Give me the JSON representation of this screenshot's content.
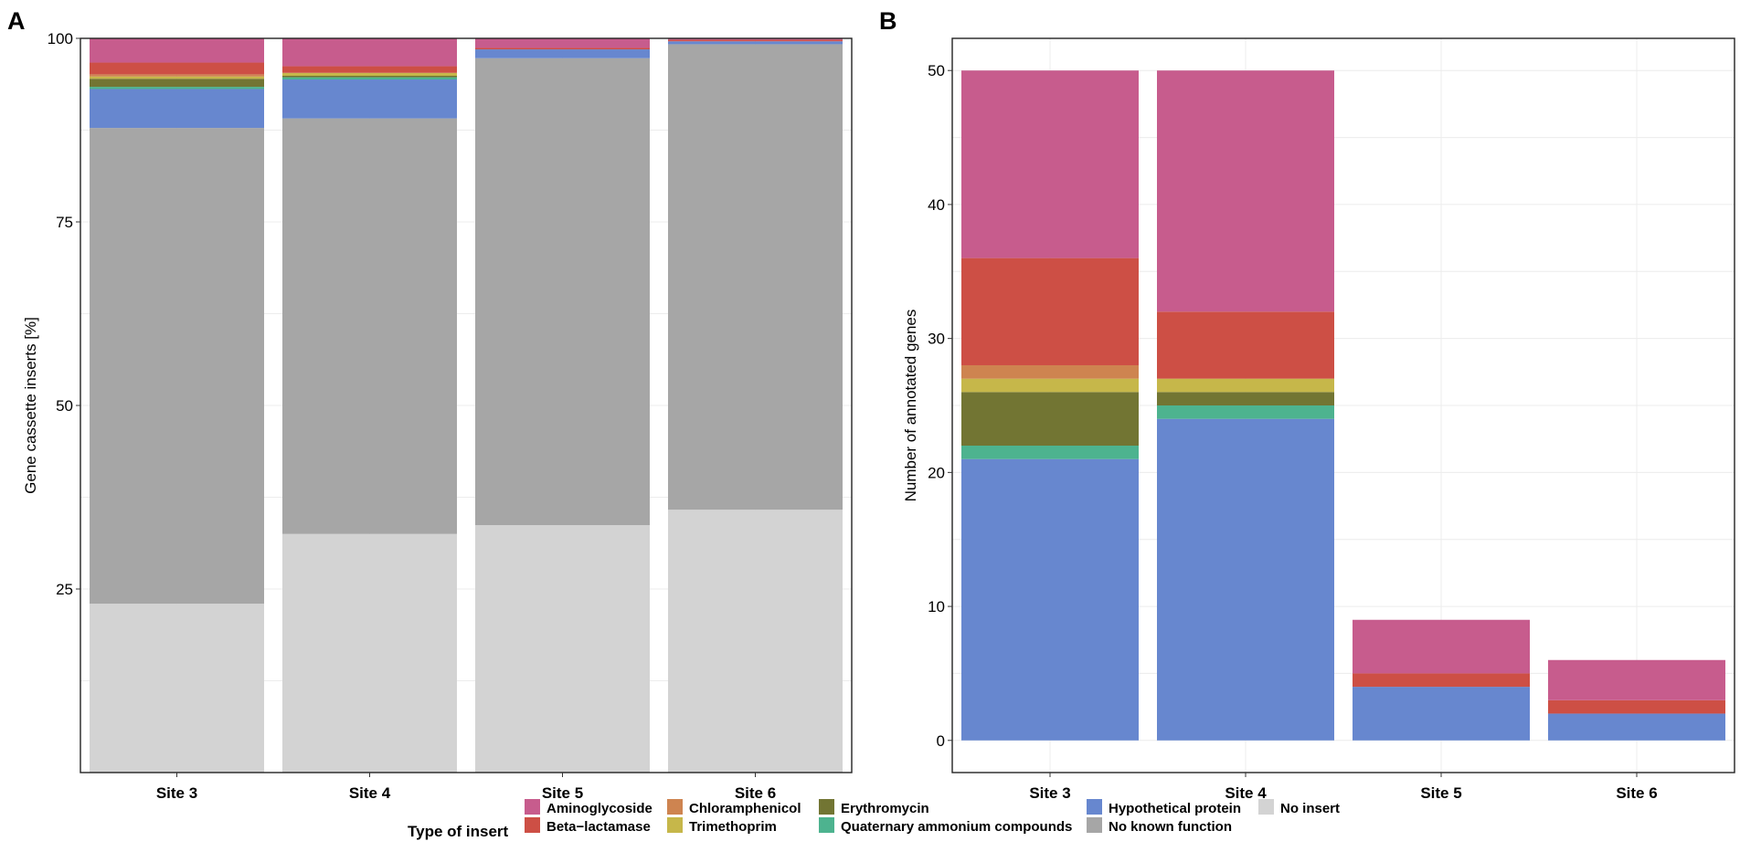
{
  "colors": {
    "Aminoglycoside": "#C75C8D",
    "Beta-lactamase": "#CD4F45",
    "Chloramphenicol": "#CE8450",
    "Trimethoprim": "#C6B74A",
    "Erythromycin": "#727533",
    "Quaternary ammonium compounds": "#4DB38F",
    "Hypothetical protein": "#6787CF",
    "No known function": "#A6A6A6",
    "No insert": "#D3D3D3"
  },
  "legend": {
    "title": "Type of insert",
    "items": [
      "Aminoglycoside",
      "Beta−lactamase",
      "Chloramphenicol",
      "Trimethoprim",
      "Erythromycin",
      "Quaternary ammonium compounds",
      "Hypothetical protein",
      "No known function",
      "No insert"
    ]
  },
  "chart_data": [
    {
      "panel": "A",
      "type": "bar",
      "stacked": true,
      "categories": [
        "Site 3",
        "Site 4",
        "Site 5",
        "Site 6"
      ],
      "ylabel": "Gene cassette inserts [%]",
      "xlabel": "",
      "ylim": [
        0,
        100
      ],
      "yticks": [
        25,
        50,
        75,
        100
      ],
      "grid": true,
      "series": [
        {
          "name": "No insert",
          "values": [
            23.0,
            32.5,
            33.7,
            35.8
          ]
        },
        {
          "name": "No known function",
          "values": [
            64.8,
            56.6,
            63.6,
            63.4
          ]
        },
        {
          "name": "Hypothetical protein",
          "values": [
            5.3,
            5.3,
            1.2,
            0.4
          ]
        },
        {
          "name": "Quaternary ammonium compounds",
          "values": [
            0.3,
            0.3,
            0.0,
            0.0
          ]
        },
        {
          "name": "Erythromycin",
          "values": [
            1.1,
            0.2,
            0.0,
            0.0
          ]
        },
        {
          "name": "Trimethoprim",
          "values": [
            0.3,
            0.4,
            0.0,
            0.0
          ]
        },
        {
          "name": "Chloramphenicol",
          "values": [
            0.3,
            0.0,
            0.0,
            0.0
          ]
        },
        {
          "name": "Beta-lactamase",
          "values": [
            1.6,
            0.9,
            0.2,
            0.2
          ]
        },
        {
          "name": "Aminoglycoside",
          "values": [
            3.3,
            3.8,
            1.3,
            0.2
          ]
        }
      ]
    },
    {
      "panel": "B",
      "type": "bar",
      "stacked": true,
      "categories": [
        "Site 3",
        "Site 4",
        "Site 5",
        "Site 6"
      ],
      "ylabel": "Number of annotated genes",
      "xlabel": "",
      "ylim": [
        -2.4,
        52.4
      ],
      "yticks": [
        0,
        10,
        20,
        30,
        40,
        50
      ],
      "grid": true,
      "series": [
        {
          "name": "Hypothetical protein",
          "values": [
            21,
            24,
            4,
            2
          ]
        },
        {
          "name": "Quaternary ammonium compounds",
          "values": [
            1,
            1,
            0,
            0
          ]
        },
        {
          "name": "Erythromycin",
          "values": [
            4,
            1,
            0,
            0
          ]
        },
        {
          "name": "Trimethoprim",
          "values": [
            1,
            1,
            0,
            0
          ]
        },
        {
          "name": "Chloramphenicol",
          "values": [
            1,
            0,
            0,
            0
          ]
        },
        {
          "name": "Beta-lactamase",
          "values": [
            8,
            5,
            1,
            1
          ]
        },
        {
          "name": "Aminoglycoside",
          "values": [
            14,
            18,
            4,
            3
          ]
        }
      ]
    }
  ]
}
